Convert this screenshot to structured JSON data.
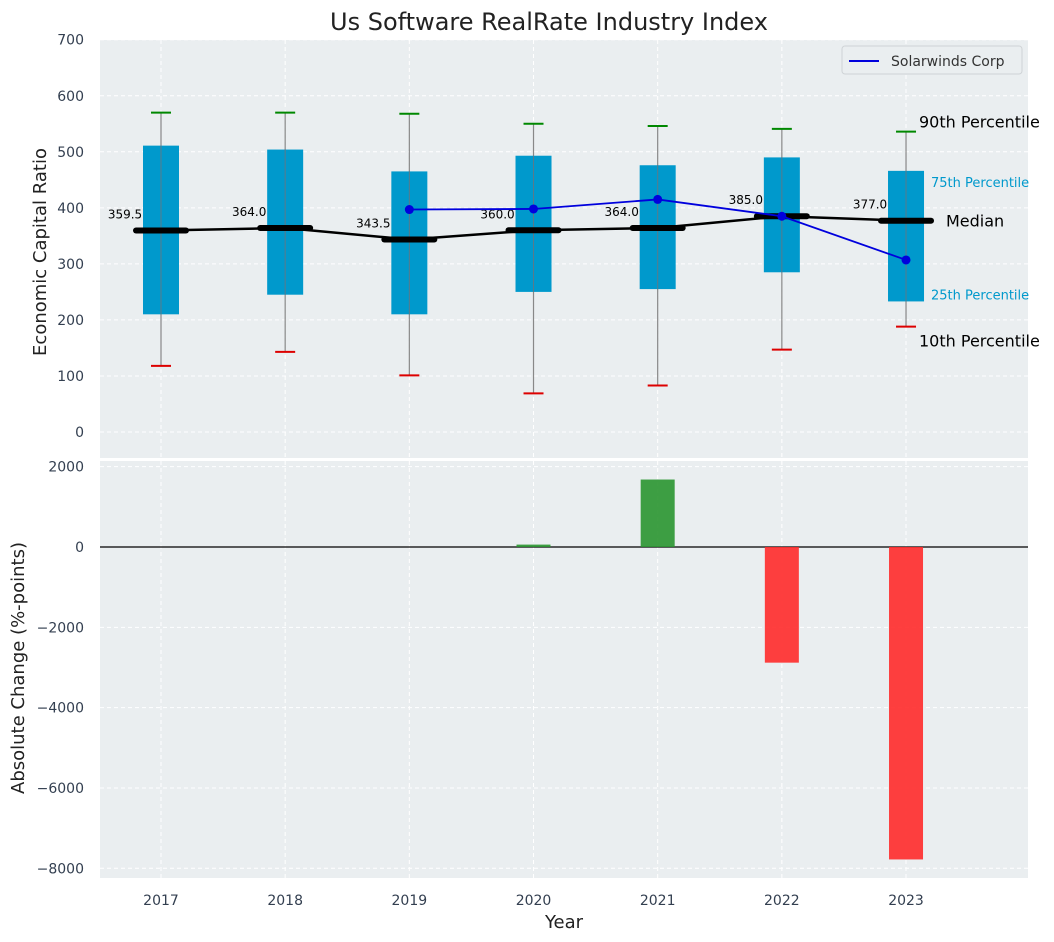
{
  "chart_data": [
    {
      "type": "box",
      "title": "Us Software RealRate Industry Index",
      "xlabel": "",
      "ylabel": "Economic Capital Ratio",
      "ylim": [
        -50,
        700
      ],
      "yticks": [
        0,
        100,
        200,
        300,
        400,
        500,
        600,
        700
      ],
      "categories": [
        "2017",
        "2018",
        "2019",
        "2020",
        "2021",
        "2022",
        "2023"
      ],
      "p10": [
        118,
        143,
        101,
        69,
        83,
        147,
        188
      ],
      "p25": [
        210,
        245,
        210,
        250,
        255,
        285,
        233
      ],
      "median": [
        359.5,
        364.0,
        343.5,
        360.0,
        364.0,
        385.0,
        377.0
      ],
      "p75": [
        511,
        504,
        465,
        493,
        476,
        490,
        466
      ],
      "p90": [
        570,
        570,
        568,
        550,
        546,
        541,
        536
      ],
      "median_labels": [
        "359.5",
        "364.0",
        "343.5",
        "360.0",
        "364.0",
        "385.0",
        "377.0"
      ],
      "series": [
        {
          "name": "Solarwinds Corp",
          "color": "#0000dd",
          "values": [
            null,
            null,
            397,
            398,
            415,
            385,
            307
          ]
        }
      ],
      "legend": "top-right",
      "grid": true,
      "annotations": {
        "p90": "90th Percentile",
        "p75": "75th Percentile",
        "median": "Median",
        "p25": "25th Percentile",
        "p10": "10th Percentile"
      }
    },
    {
      "type": "bar",
      "xlabel": "Year",
      "ylabel": "Absolute Change (%-points)",
      "ylim": [
        -8300,
        2300
      ],
      "yticks": [
        -8000,
        -6000,
        -4000,
        -2000,
        0,
        2000
      ],
      "categories": [
        "2017",
        "2018",
        "2019",
        "2020",
        "2021",
        "2022",
        "2023"
      ],
      "values": [
        0,
        0,
        0,
        60,
        1680,
        -2880,
        -7780
      ],
      "positive_color": "#2a9530",
      "negative_color": "#ff2a2a",
      "grid": true
    }
  ],
  "colors": {
    "box_fill": "#0099cc",
    "panel_bg": "#eaeef0",
    "p90_cap": "#008800",
    "p10_cap": "#dd0000",
    "median_line": "#000000"
  }
}
